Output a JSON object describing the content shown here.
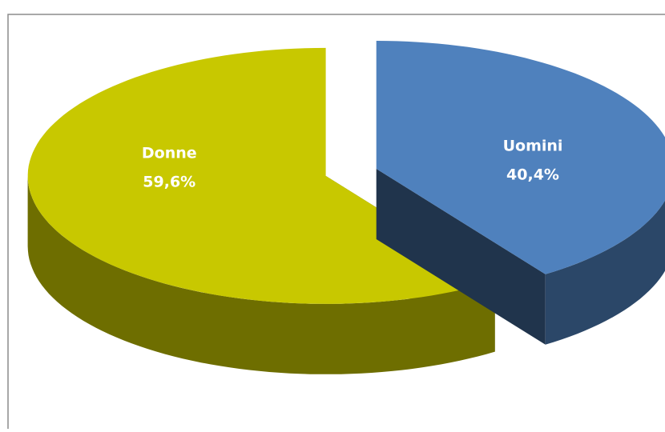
{
  "chart_data": {
    "type": "pie",
    "categories": [
      "Donne",
      "Uomini"
    ],
    "values": [
      59.6,
      40.4
    ],
    "value_labels": [
      "59,6%",
      "40,4%"
    ],
    "colors": [
      "#c8c800",
      "#4f81bd"
    ]
  }
}
